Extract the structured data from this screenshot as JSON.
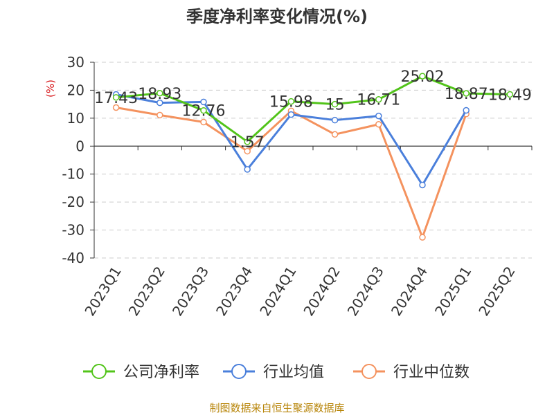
{
  "chart_data": {
    "type": "line",
    "title": "季度净利率变化情况(%)",
    "ylabel": "(%)",
    "xlabel": "",
    "categories": [
      "2023Q1",
      "2023Q2",
      "2023Q3",
      "2023Q4",
      "2024Q1",
      "2024Q2",
      "2024Q3",
      "2024Q4",
      "2025Q1",
      "2025Q2"
    ],
    "ylim": [
      -40,
      30
    ],
    "yticks": [
      30,
      20,
      10,
      0,
      -10,
      -20,
      -30,
      -40
    ],
    "grid": true,
    "legend_position": "bottom",
    "series": [
      {
        "name": "公司净利率",
        "color": "#52c41a",
        "values": [
          17.43,
          18.93,
          12.76,
          1.57,
          15.98,
          15,
          16.71,
          25.02,
          18.87,
          18.49
        ],
        "labels": [
          "17.43",
          "18.93",
          "12.76",
          "1.57",
          "15.98",
          "15",
          "16.71",
          "25.02",
          "18.87",
          "18.49"
        ]
      },
      {
        "name": "行业均值",
        "color": "#4a7fdb",
        "values": [
          18.5,
          15.5,
          15.8,
          -8.3,
          11.3,
          9.3,
          10.8,
          -13.9,
          12.8,
          null
        ]
      },
      {
        "name": "行业中位数",
        "color": "#f4925e",
        "values": [
          13.8,
          11.1,
          8.6,
          -1.8,
          12.6,
          4.2,
          7.8,
          -32.6,
          11.5,
          null
        ]
      }
    ]
  },
  "footer": {
    "source": "制图数据来自恒生聚源数据库"
  }
}
